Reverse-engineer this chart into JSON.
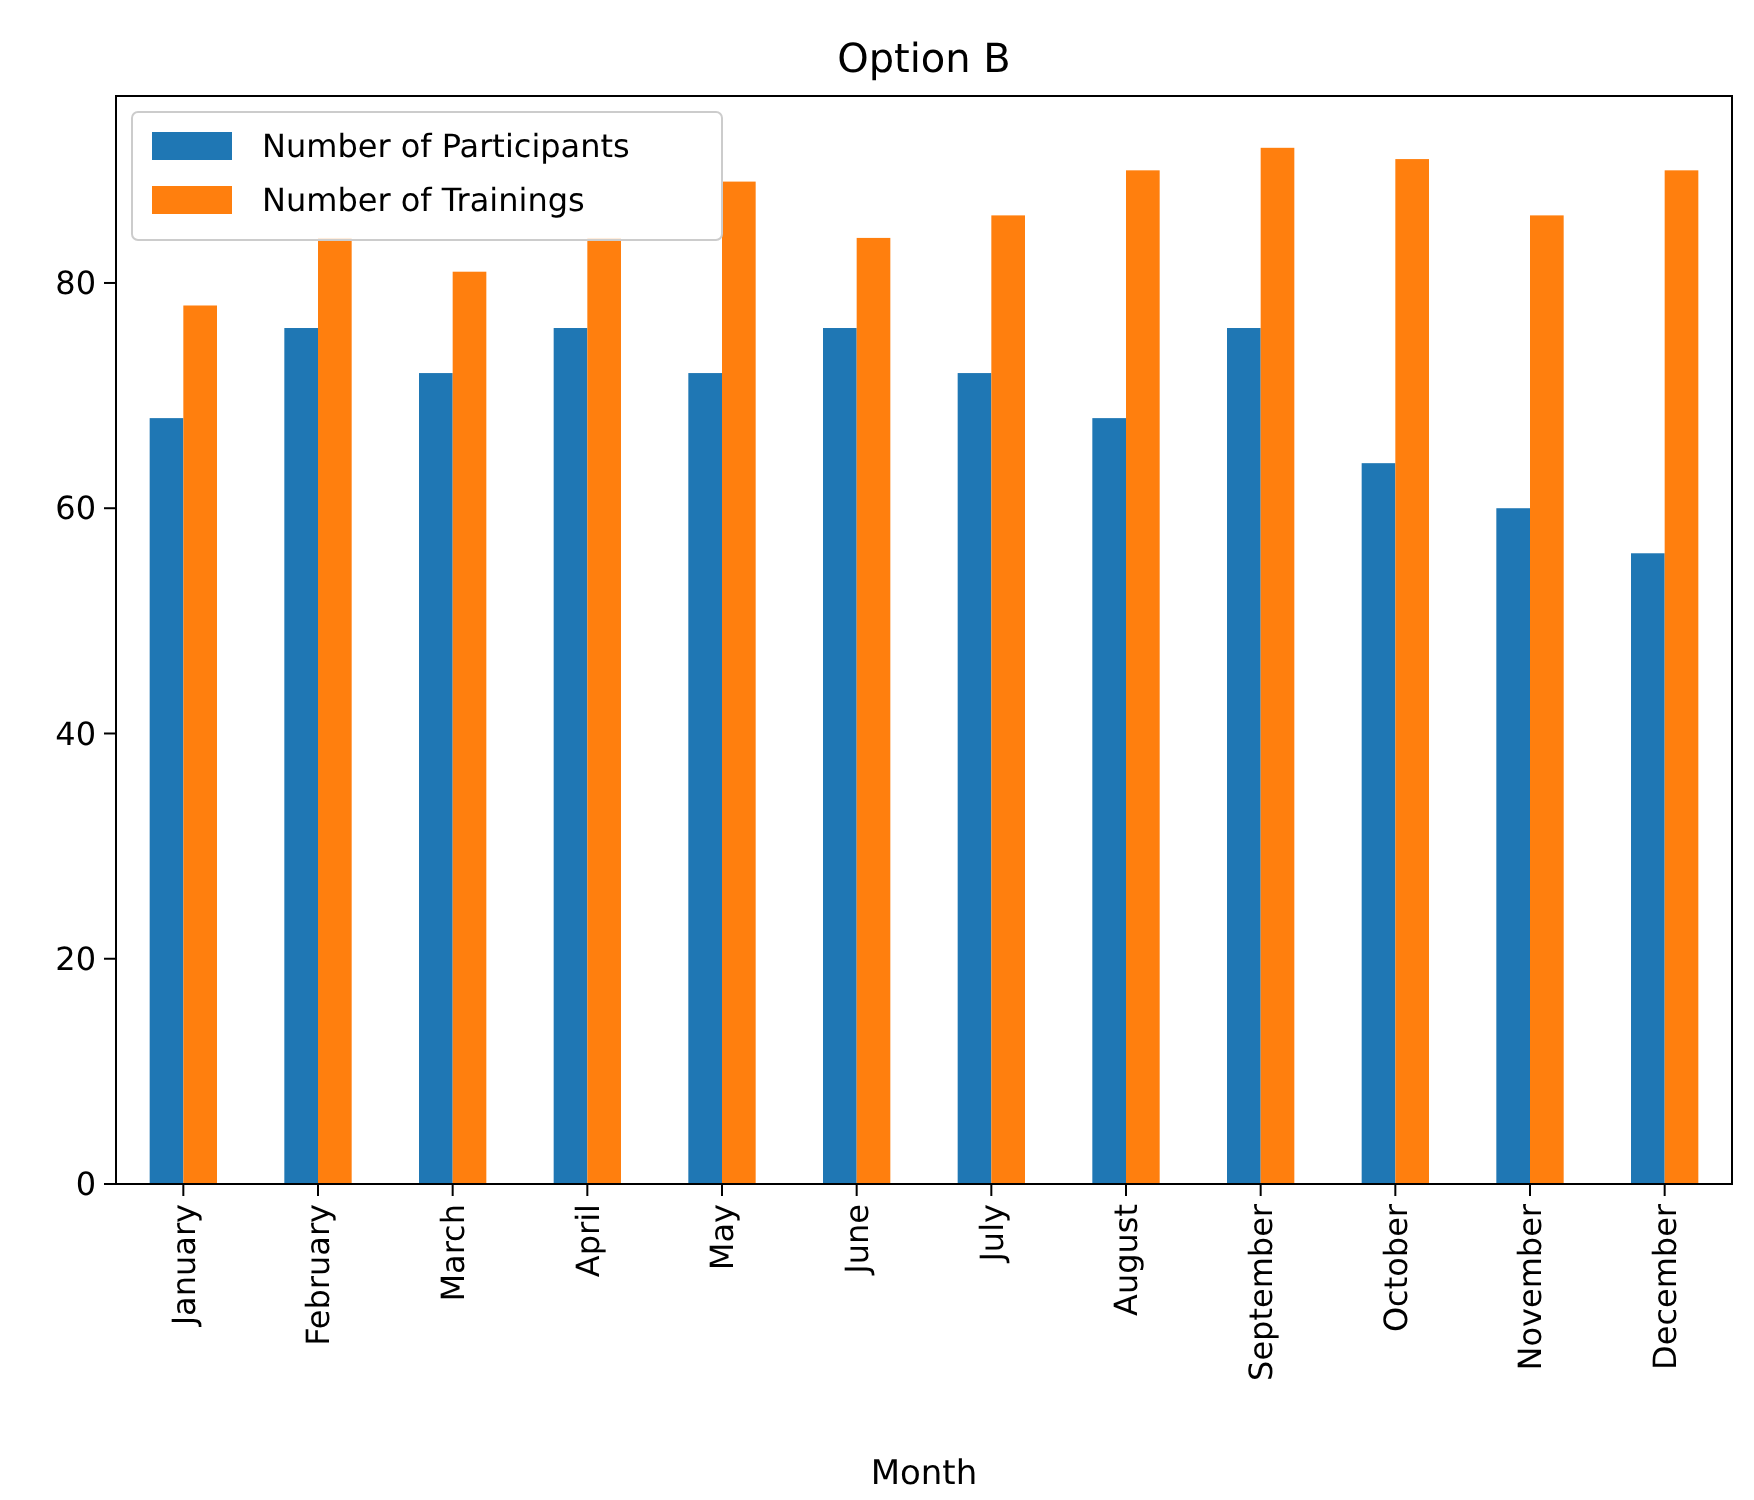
{
  "chart_data": {
    "type": "bar",
    "title": "Option B",
    "xlabel": "Month",
    "categories": [
      "January",
      "February",
      "March",
      "April",
      "May",
      "June",
      "July",
      "August",
      "September",
      "October",
      "November",
      "December"
    ],
    "series": [
      {
        "name": "Number of Participants",
        "color": "#1f77b4",
        "values": [
          68,
          76,
          72,
          76,
          72,
          76,
          72,
          68,
          76,
          64,
          60,
          56
        ]
      },
      {
        "name": "Number of Trainings",
        "color": "#ff7f0e",
        "values": [
          78,
          84,
          81,
          84,
          89,
          84,
          86,
          90,
          92,
          91,
          86,
          90
        ]
      }
    ],
    "ylim": [
      0,
      96.6
    ],
    "yticks": [
      0,
      20,
      40,
      60,
      80
    ],
    "grid": false,
    "legend": "top left"
  }
}
